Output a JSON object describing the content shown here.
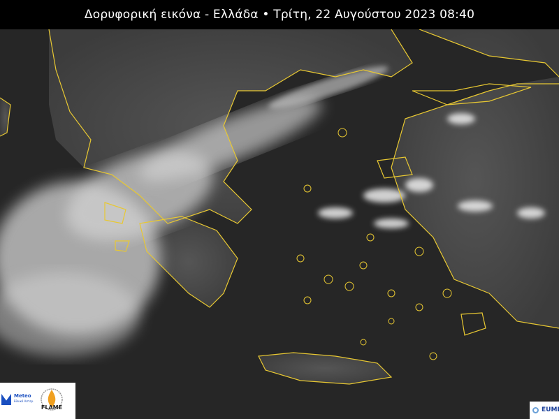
{
  "title": "Δορυφορική εικόνα - Ελλάδα • Τρίτη, 22 Αυγούστου 2023 08:40",
  "logos": {
    "meteo": "Meteo",
    "meteo_sub": "Εθνικό Αστεροσκοπείο Αθηνών",
    "flame": "FLAME",
    "eumetsat": "EUMETSAT"
  },
  "colors": {
    "coastline": "#e8c832",
    "title_bg": "#000000",
    "smoke": "#d8d8d8"
  }
}
